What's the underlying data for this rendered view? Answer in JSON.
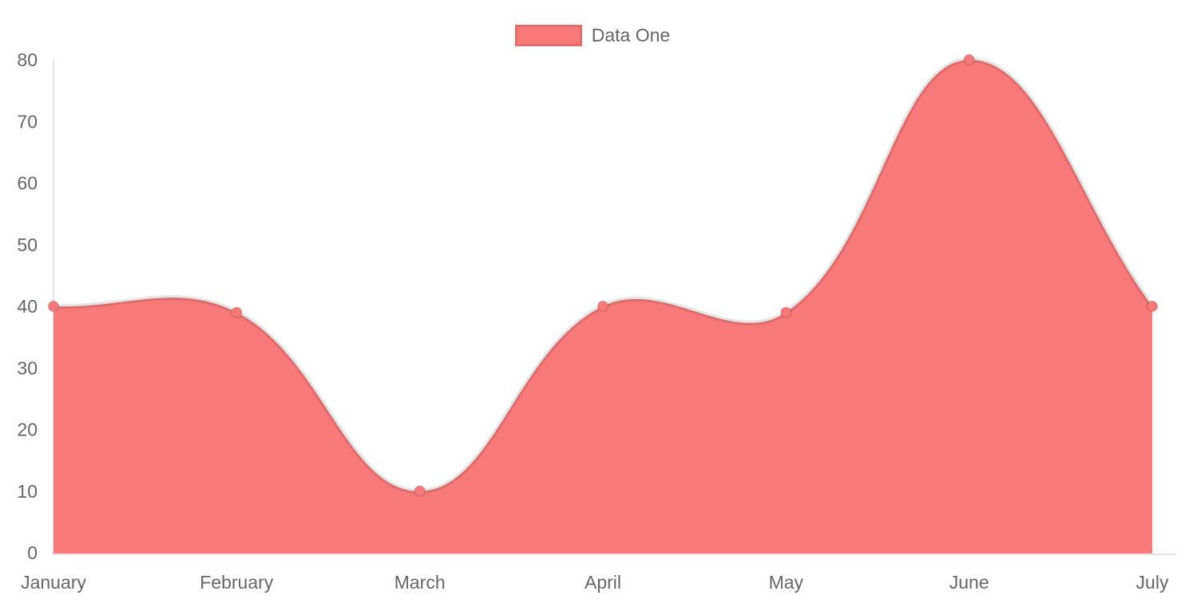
{
  "chart_data": {
    "type": "area",
    "title": "",
    "categories": [
      "January",
      "February",
      "March",
      "April",
      "May",
      "June",
      "July"
    ],
    "series": [
      {
        "name": "Data One",
        "values": [
          40,
          39,
          10,
          40,
          39,
          80,
          40
        ],
        "color": "#f87979"
      }
    ],
    "xlabel": "",
    "ylabel": "",
    "ylim": [
      0,
      80
    ],
    "y_ticks": [
      0,
      10,
      20,
      30,
      40,
      50,
      60,
      70,
      80
    ],
    "grid": "off",
    "legend_position": "top",
    "line_tension": 0.4,
    "stroke_color": "rgba(0,0,0,0.1)",
    "text_color": "#666666",
    "background_color": "#ffffff"
  }
}
